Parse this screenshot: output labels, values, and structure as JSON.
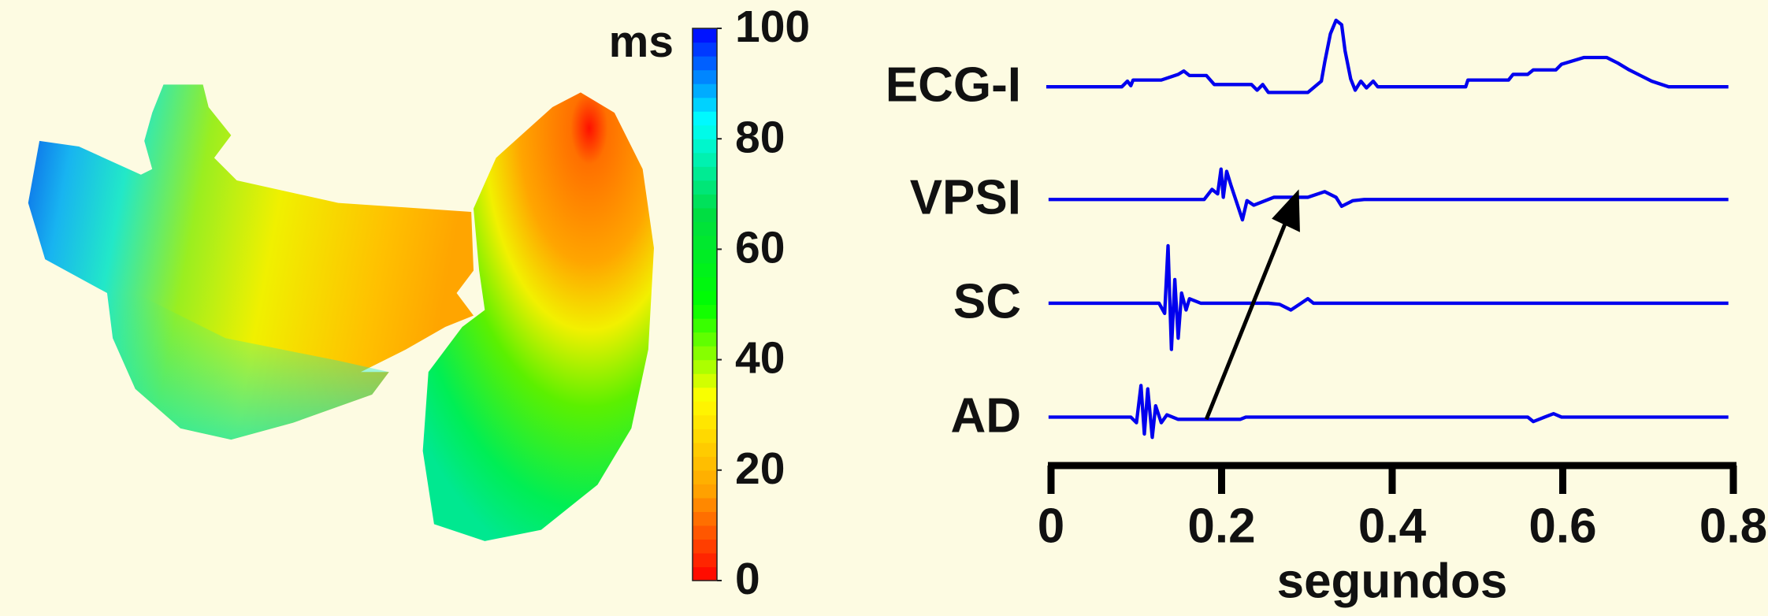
{
  "chart_data": [
    {
      "type": "colorbar",
      "label": "ms",
      "zlim": [
        0,
        100
      ],
      "zticks": [
        0,
        20,
        40,
        60,
        80,
        100
      ],
      "colormap": [
        "#ff0000",
        "#ffa500",
        "#ffff00",
        "#00ff00",
        "#00dd44",
        "#00ffff",
        "#0000ff"
      ]
    },
    {
      "type": "traces",
      "xlabel": "segundos",
      "xlim": [
        0,
        0.8
      ],
      "xticks": [
        0,
        0.2,
        0.4,
        0.6,
        0.8
      ],
      "series": [
        {
          "name": "ECG-I",
          "color": "#0000ee"
        },
        {
          "name": "VPSI",
          "color": "#0000ee"
        },
        {
          "name": "SC",
          "color": "#0000ee"
        },
        {
          "name": "AD",
          "color": "#0000ee"
        }
      ]
    }
  ]
}
